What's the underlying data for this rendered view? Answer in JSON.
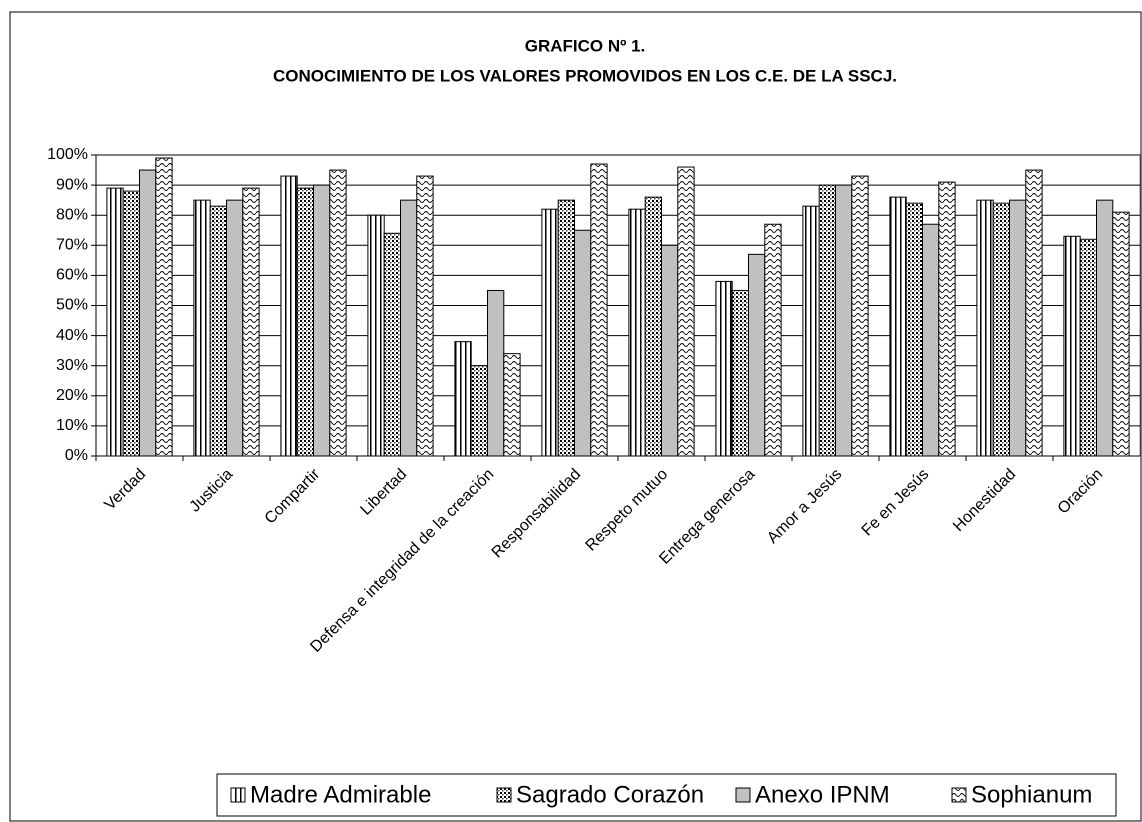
{
  "chart_data": {
    "type": "bar",
    "title": "GRAFICO Nº 1.",
    "subtitle": "CONOCIMIENTO DE LOS VALORES PROMOVIDOS EN LOS C.E. DE LA SSCJ.",
    "categories": [
      "Verdad",
      "Justicia",
      "Compartir",
      "Libertad",
      "Defensa e integridad de la creación",
      "Responsabilidad",
      "Respeto mutuo",
      "Entrega generosa",
      "Amor a Jesús",
      "Fe en Jesús",
      "Honestidad",
      "Oración"
    ],
    "series": [
      {
        "name": "Madre Admirable",
        "color": "#ffffff",
        "pattern": "vertical-lines",
        "values": [
          89,
          85,
          93,
          80,
          38,
          82,
          82,
          58,
          83,
          86,
          85,
          73
        ]
      },
      {
        "name": "Sagrado Corazón",
        "color": "#ffffff",
        "pattern": "dots",
        "values": [
          88,
          83,
          89,
          74,
          30,
          85,
          86,
          55,
          90,
          84,
          84,
          72
        ]
      },
      {
        "name": "Anexo IPNM",
        "color": "#c0c0c0",
        "pattern": "solid",
        "values": [
          95,
          85,
          90,
          85,
          55,
          75,
          70,
          67,
          90,
          77,
          85,
          85
        ]
      },
      {
        "name": "Sophianum",
        "color": "#ffffff",
        "pattern": "waves",
        "values": [
          99,
          89,
          95,
          93,
          34,
          97,
          96,
          77,
          93,
          91,
          95,
          81
        ]
      }
    ],
    "ylim": [
      0,
      100
    ],
    "yticks": [
      {
        "value": 0,
        "label": "0%"
      },
      {
        "value": 10,
        "label": "10%"
      },
      {
        "value": 20,
        "label": "20%"
      },
      {
        "value": 30,
        "label": "30%"
      },
      {
        "value": 40,
        "label": "40%"
      },
      {
        "value": 50,
        "label": "50%"
      },
      {
        "value": 60,
        "label": "60%"
      },
      {
        "value": 70,
        "label": "70%"
      },
      {
        "value": 80,
        "label": "80%"
      },
      {
        "value": 90,
        "label": "90%"
      },
      {
        "value": 100,
        "label": "100%"
      }
    ],
    "grid": true,
    "legend": "bottom"
  }
}
